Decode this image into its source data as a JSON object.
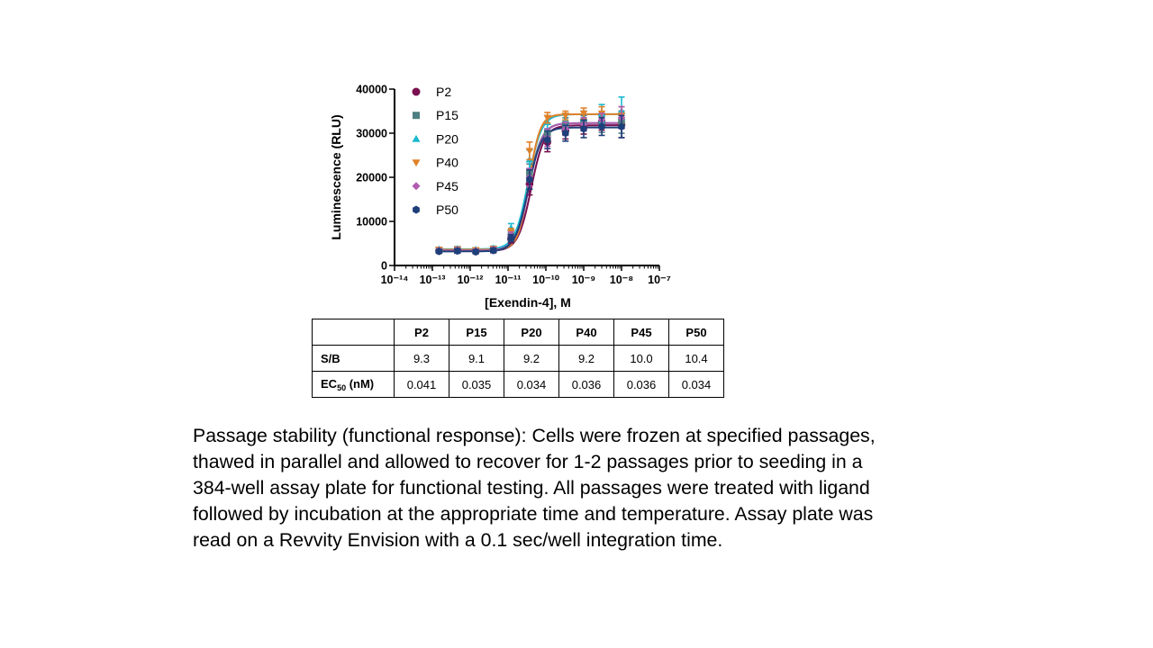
{
  "chart_data": {
    "type": "scatter",
    "xlabel": "[Exendin-4], M",
    "ylabel": "Luminescence (RLU)",
    "xscale": "log",
    "xlim": [
      1e-14,
      1e-07
    ],
    "ylim": [
      0,
      40000
    ],
    "x_tick_labels": [
      "10⁻¹⁴",
      "10⁻¹³",
      "10⁻¹²",
      "10⁻¹¹",
      "10⁻¹⁰",
      "10⁻⁹",
      "10⁻⁸",
      "10⁻⁷"
    ],
    "y_tick_labels": [
      "0",
      "10000",
      "20000",
      "30000",
      "40000"
    ],
    "legend_position": "top-left inside",
    "x": [
      1.5e-13,
      4.6e-13,
      1.4e-12,
      4.1e-12,
      1.2e-11,
      3.7e-11,
      1.1e-10,
      3.3e-10,
      1e-09,
      3e-09,
      1e-08
    ],
    "series": [
      {
        "name": "P2",
        "color": "#7a1050",
        "marker": "circle",
        "values": [
          3300,
          3400,
          3200,
          3500,
          6000,
          18500,
          28000,
          30500,
          31500,
          32500,
          32000
        ],
        "errors": [
          500,
          600,
          500,
          600,
          900,
          2500,
          2200,
          1800,
          1700,
          1800,
          3000
        ]
      },
      {
        "name": "P15",
        "color": "#4d8080",
        "marker": "square",
        "values": [
          3500,
          3600,
          3400,
          3700,
          6500,
          21000,
          30000,
          32000,
          32500,
          32000,
          32500
        ],
        "errors": [
          400,
          500,
          400,
          500,
          800,
          2000,
          2000,
          1500,
          1500,
          1800,
          2500
        ]
      },
      {
        "name": "P20",
        "color": "#1cb8d0",
        "marker": "triangle-up",
        "values": [
          3700,
          3800,
          3600,
          3900,
          8500,
          24000,
          32500,
          33000,
          33500,
          34500,
          35000
        ],
        "errors": [
          400,
          500,
          400,
          500,
          1000,
          2200,
          1500,
          1200,
          1500,
          2000,
          3200
        ]
      },
      {
        "name": "P40",
        "color": "#e0822a",
        "marker": "triangle-down",
        "values": [
          3600,
          3700,
          3500,
          3800,
          7500,
          26000,
          33500,
          34000,
          34500,
          34500,
          34000
        ],
        "errors": [
          400,
          500,
          400,
          500,
          900,
          2000,
          1200,
          1000,
          1200,
          1500,
          2000
        ]
      },
      {
        "name": "P45",
        "color": "#b05ab0",
        "marker": "diamond",
        "values": [
          3400,
          3500,
          3300,
          3600,
          6800,
          20000,
          29000,
          31000,
          32000,
          33000,
          33500
        ],
        "errors": [
          400,
          500,
          400,
          500,
          800,
          2000,
          2000,
          1500,
          1500,
          1500,
          2500
        ]
      },
      {
        "name": "P50",
        "color": "#1e3f7a",
        "marker": "hexagon",
        "values": [
          3200,
          3300,
          3100,
          3400,
          6200,
          19500,
          28500,
          30000,
          31000,
          31500,
          31500
        ],
        "errors": [
          400,
          500,
          400,
          500,
          800,
          2200,
          2000,
          1800,
          2000,
          2000,
          2500
        ]
      }
    ],
    "fits": [
      {
        "name": "P2",
        "bottom": 3300,
        "top": 31800,
        "ec50": 4.1e-11,
        "hill": 2.5
      },
      {
        "name": "P15",
        "bottom": 3500,
        "top": 32300,
        "ec50": 3.5e-11,
        "hill": 2.5
      },
      {
        "name": "P20",
        "bottom": 3700,
        "top": 34300,
        "ec50": 3.4e-11,
        "hill": 2.5
      },
      {
        "name": "P40",
        "bottom": 3600,
        "top": 34300,
        "ec50": 3.6e-11,
        "hill": 3.0
      },
      {
        "name": "P45",
        "bottom": 3400,
        "top": 32300,
        "ec50": 3.6e-11,
        "hill": 2.5
      },
      {
        "name": "P50",
        "bottom": 3200,
        "top": 31300,
        "ec50": 3.4e-11,
        "hill": 2.5
      }
    ]
  },
  "table": {
    "columns": [
      "P2",
      "P15",
      "P20",
      "P40",
      "P45",
      "P50"
    ],
    "rows": [
      {
        "label": "S/B",
        "values": [
          "9.3",
          "9.1",
          "9.2",
          "9.2",
          "10.0",
          "10.4"
        ]
      },
      {
        "label_main": "EC",
        "label_sub": "50",
        "label_tail": " (nM)",
        "values": [
          "0.041",
          "0.035",
          "0.034",
          "0.036",
          "0.036",
          "0.034"
        ]
      }
    ]
  },
  "caption": "Passage stability (functional response): Cells were frozen at specified passages, thawed in parallel and allowed to recover for 1-2 passages prior to seeding in a 384-well assay plate for functional testing. All passages were treated with ligand followed by incubation at the appropriate time and temperature. Assay plate was read on a Revvity Envision with a 0.1 sec/well integration time."
}
